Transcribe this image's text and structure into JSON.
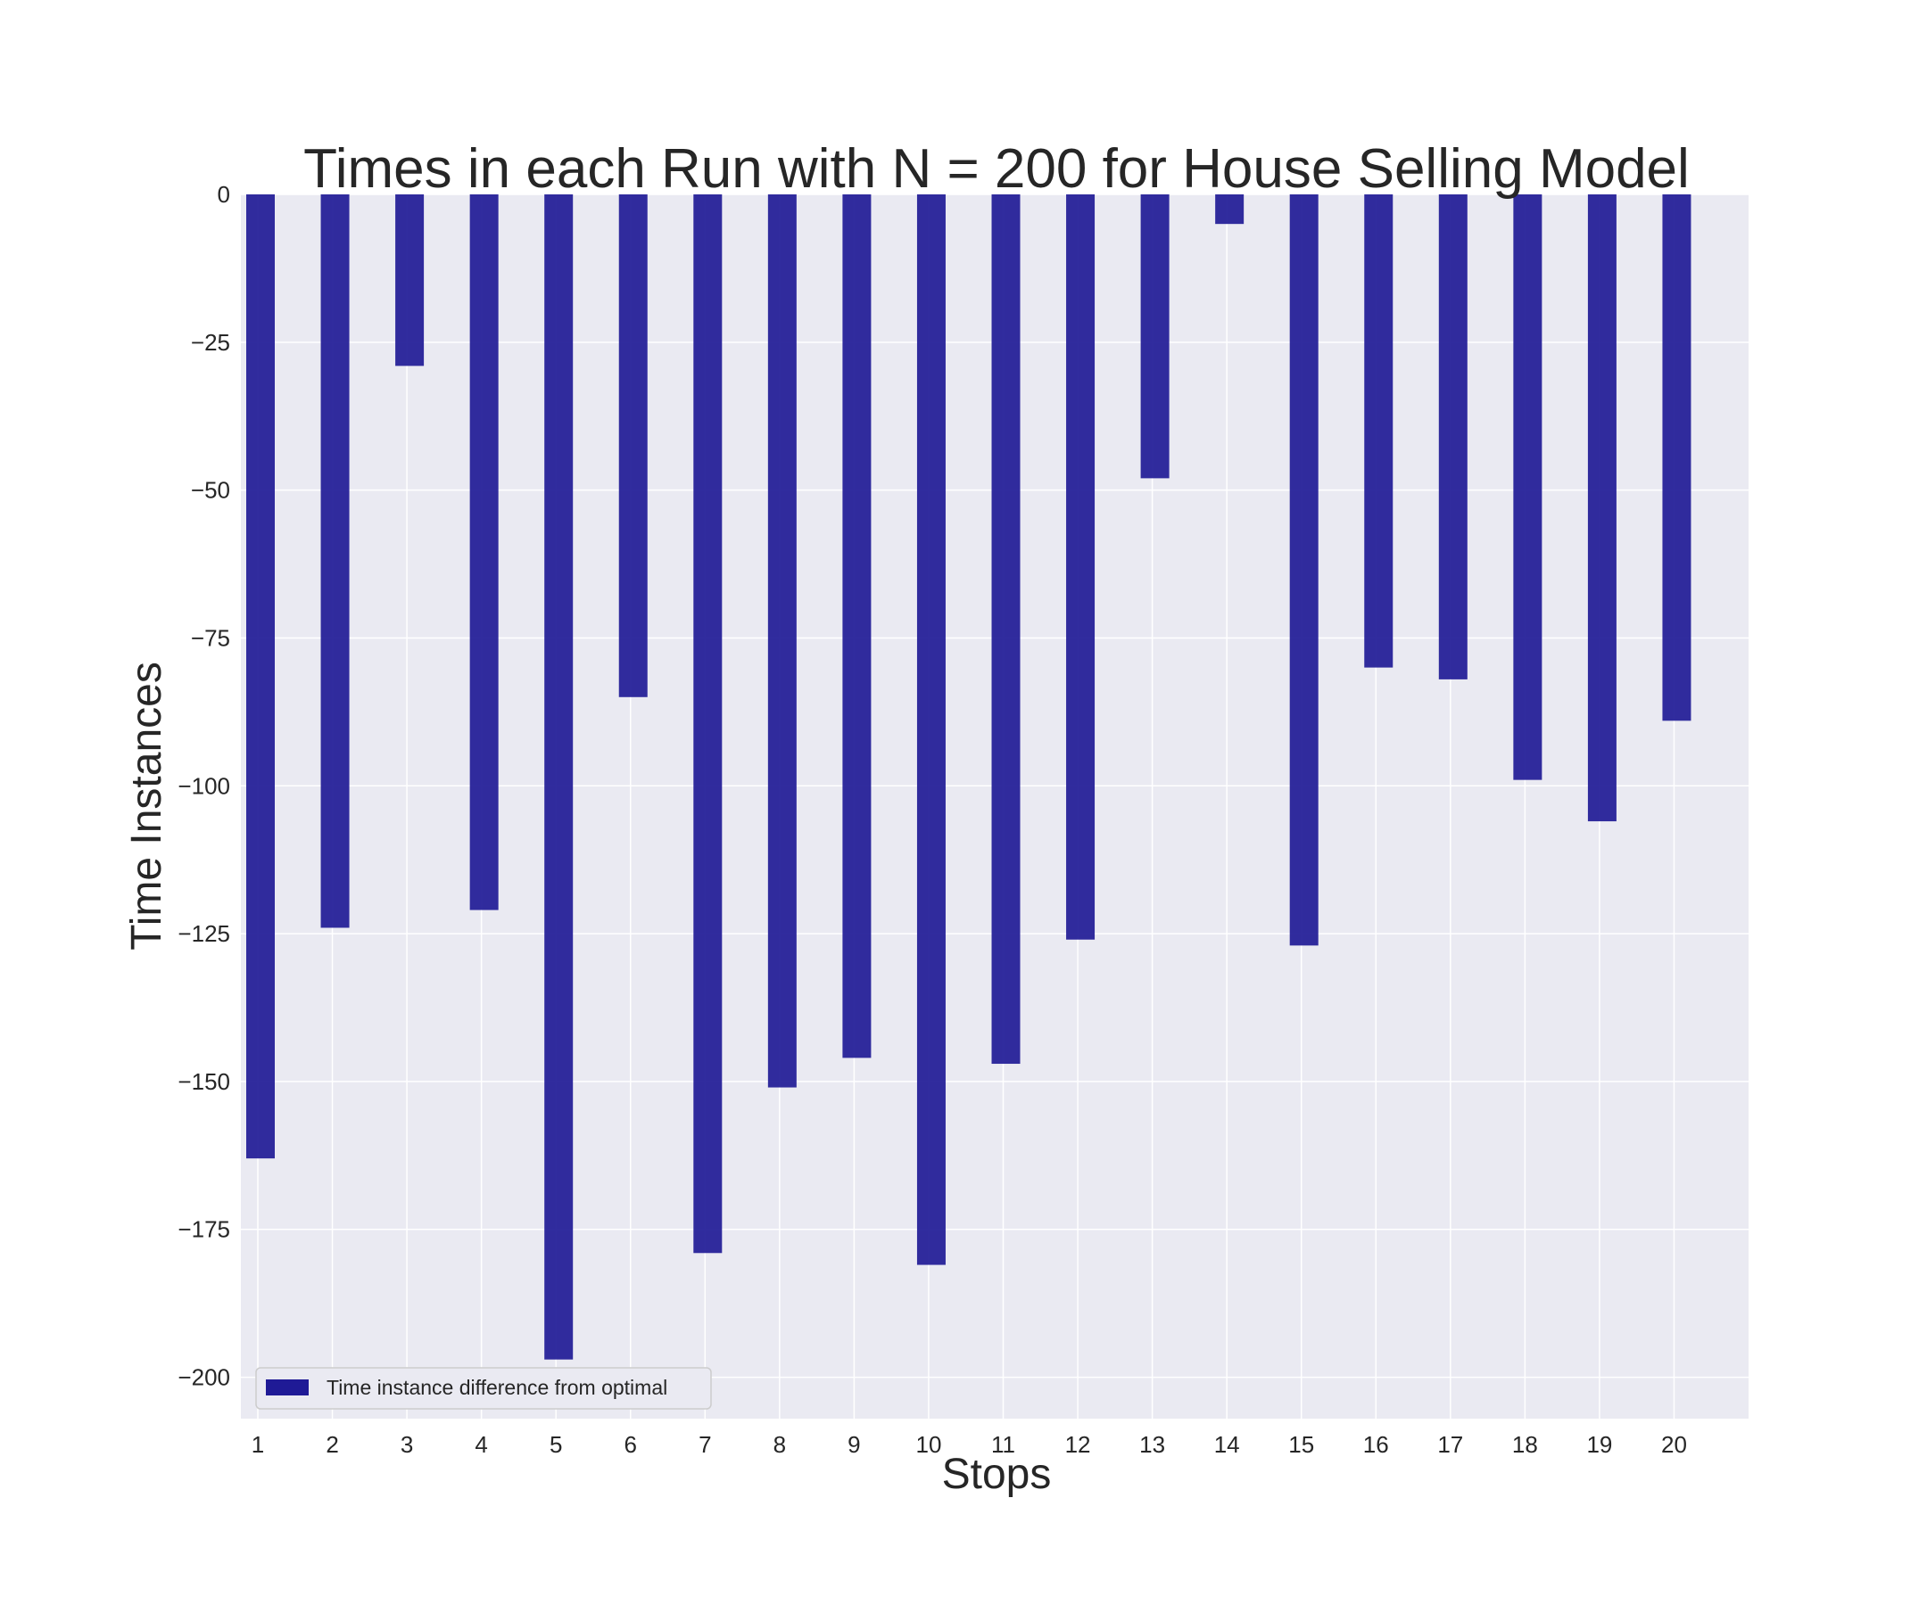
{
  "chart_data": {
    "type": "bar",
    "title": "Times in each Run with N = 200 for House Selling Model",
    "xlabel": "Stops",
    "ylabel": "Time Instances",
    "categories": [
      "1",
      "2",
      "3",
      "4",
      "5",
      "6",
      "7",
      "8",
      "9",
      "10",
      "11",
      "12",
      "13",
      "14",
      "15",
      "16",
      "17",
      "18",
      "19",
      "20"
    ],
    "series": [
      {
        "name": "Time instance difference from optimal",
        "values": [
          -163,
          -124,
          -29,
          -121,
          -197,
          -85,
          -179,
          -151,
          -146,
          -181,
          -147,
          -126,
          -48,
          -5,
          -127,
          -80,
          -82,
          -99,
          -106,
          -89
        ]
      }
    ],
    "ylim": [
      -207,
      0
    ],
    "yticks": [
      0,
      -25,
      -50,
      -75,
      -100,
      -125,
      -150,
      -175,
      -200
    ],
    "ytick_labels": [
      "0",
      "−25",
      "−50",
      "−75",
      "−100",
      "−125",
      "−150",
      "−175",
      "−200"
    ],
    "grid": true,
    "legend_position": "lower-left",
    "colors": {
      "bar": "#1f1a96",
      "plot_background": "#eaeaf2",
      "grid": "#ffffff",
      "text": "#262626"
    }
  }
}
